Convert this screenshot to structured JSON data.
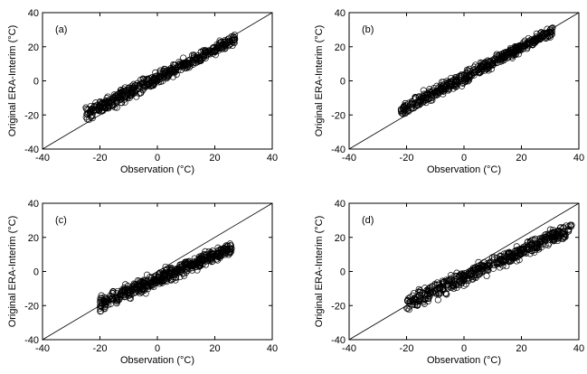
{
  "chart_data": [
    {
      "type": "scatter",
      "panel_label": "(a)",
      "xlabel": "Observation (°C)",
      "ylabel": "Original ERA-Interim (°C)",
      "xlim": [
        -40,
        40
      ],
      "ylim": [
        -40,
        40
      ],
      "xticks": [
        -40,
        -20,
        0,
        20,
        40
      ],
      "yticks": [
        -40,
        -20,
        0,
        20,
        40
      ],
      "reference_line": "1:1",
      "marker": "open-circle",
      "point_cloud": {
        "x_range": [
          -25,
          27
        ],
        "y_range_at_x_min": [
          -26,
          -13
        ],
        "y_range_at_x_max": [
          20,
          29
        ],
        "fit_slope": 0.95,
        "fit_intercept": 1.0
      }
    },
    {
      "type": "scatter",
      "panel_label": "(b)",
      "xlabel": "Observation (°C)",
      "ylabel": "Original ERA-Interim (°C)",
      "xlim": [
        -40,
        40
      ],
      "ylim": [
        -40,
        40
      ],
      "xticks": [
        -40,
        -20,
        0,
        20,
        40
      ],
      "yticks": [
        -40,
        -20,
        0,
        20,
        40
      ],
      "reference_line": "1:1",
      "marker": "open-circle",
      "point_cloud": {
        "x_range": [
          -22,
          31
        ],
        "y_range_at_x_min": [
          -23,
          -12
        ],
        "y_range_at_x_max": [
          26,
          33
        ],
        "fit_slope": 0.97,
        "fit_intercept": 1.5
      }
    },
    {
      "type": "scatter",
      "panel_label": "(c)",
      "xlabel": "Observation (°C)",
      "ylabel": "Original ERA-Interim (°C)",
      "xlim": [
        -40,
        40
      ],
      "ylim": [
        -40,
        40
      ],
      "xticks": [
        -40,
        -20,
        0,
        20,
        40
      ],
      "yticks": [
        -40,
        -20,
        0,
        20,
        40
      ],
      "reference_line": "1:1",
      "marker": "open-circle",
      "point_cloud": {
        "x_range": [
          -20,
          26
        ],
        "y_range_at_x_min": [
          -26,
          -12
        ],
        "y_range_at_x_max": [
          9,
          19
        ],
        "fit_slope": 0.8,
        "fit_intercept": -2.0
      }
    },
    {
      "type": "scatter",
      "panel_label": "(d)",
      "xlabel": "Observation (°C)",
      "ylabel": "Original ERA-Interim (°C)",
      "xlim": [
        -40,
        40
      ],
      "ylim": [
        -40,
        40
      ],
      "xticks": [
        -40,
        -20,
        0,
        20,
        40
      ],
      "yticks": [
        -40,
        -20,
        0,
        20,
        40
      ],
      "reference_line": "1:1",
      "marker": "open-circle",
      "point_cloud": {
        "x_range": [
          -20,
          38
        ],
        "y_range_at_x_min": [
          -26,
          -12
        ],
        "y_range_at_x_max": [
          20,
          31
        ],
        "fit_slope": 0.85,
        "fit_intercept": -2.0
      }
    }
  ]
}
